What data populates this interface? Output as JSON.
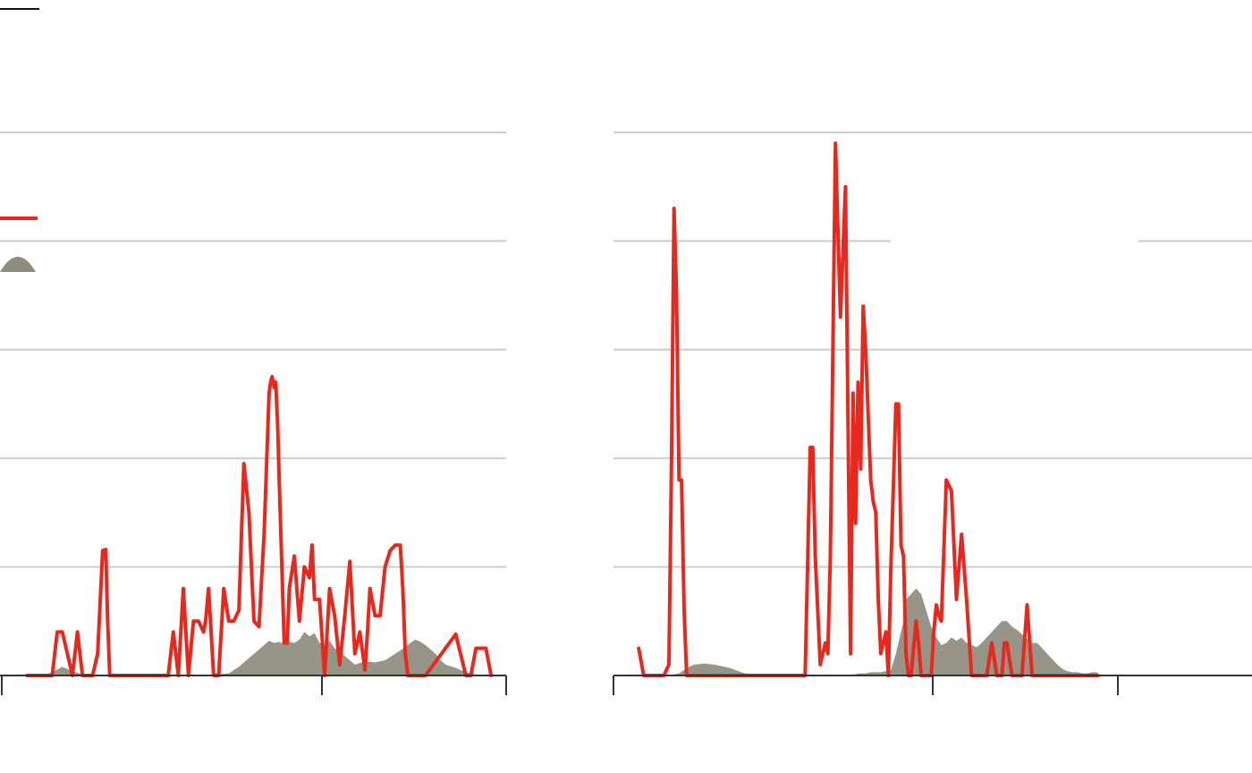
{
  "colors": {
    "line": "#e8281c",
    "area": "#8e8c7e",
    "grid": "#cccccc",
    "axis": "#333333"
  },
  "legend": {
    "line_icon": "line-swatch",
    "area_icon": "area-swatch"
  },
  "chart_data": [
    {
      "type": "line",
      "grid": true,
      "ylim": [
        0,
        5
      ],
      "yticks": [
        0,
        1,
        2,
        3,
        4,
        5
      ],
      "xlim": [
        0,
        100
      ],
      "x_ticks": [
        0,
        63,
        100
      ],
      "series": [
        {
          "kind": "area",
          "x": [
            0,
            8,
            10,
            12,
            14,
            16,
            20,
            30,
            40,
            45,
            47,
            50,
            53,
            54,
            55,
            56,
            57,
            58,
            59,
            60,
            61,
            62,
            63,
            64,
            65,
            66,
            67,
            68,
            70,
            72,
            74,
            76,
            78,
            80,
            81,
            82,
            83,
            84,
            85,
            86,
            87,
            88,
            90,
            92,
            94,
            96
          ],
          "values": [
            0,
            0,
            0.03,
            0.08,
            0.04,
            0.01,
            0,
            0,
            0,
            0.02,
            0.08,
            0.2,
            0.32,
            0.3,
            0.31,
            0.29,
            0.31,
            0.3,
            0.33,
            0.4,
            0.36,
            0.39,
            0.3,
            0.28,
            0.32,
            0.25,
            0.22,
            0.18,
            0.1,
            0.13,
            0.12,
            0.14,
            0.2,
            0.26,
            0.3,
            0.33,
            0.31,
            0.28,
            0.24,
            0.2,
            0.14,
            0.1,
            0.07,
            0.03,
            0.01,
            0
          ]
        },
        {
          "kind": "line",
          "x": [
            5,
            10,
            11,
            12,
            13,
            14,
            15,
            16,
            17,
            18,
            19,
            20,
            20.6,
            21,
            21.4,
            22,
            23,
            24,
            30,
            33,
            34,
            35,
            36,
            37,
            38,
            39,
            40,
            40.4,
            41,
            42,
            43,
            44,
            45,
            46,
            47,
            48,
            49,
            49.6,
            50,
            51,
            52,
            53,
            53.3,
            53.6,
            54,
            54.3,
            54.7,
            55,
            56,
            56.6,
            57,
            58,
            58.5,
            59,
            60,
            61,
            61.5,
            62,
            62.5,
            63,
            64,
            65,
            66,
            67,
            68,
            69,
            70,
            71,
            72,
            72.5,
            73,
            74,
            75,
            76,
            77,
            78,
            79,
            79.5,
            80,
            80.5,
            81,
            81.3,
            81.6,
            82,
            83,
            84,
            90,
            92,
            93,
            94,
            96,
            97
          ],
          "values": [
            0,
            0,
            0.4,
            0.4,
            0.2,
            0,
            0.4,
            0,
            0,
            0,
            0.2,
            1.15,
            1.16,
            0.5,
            0,
            0,
            0,
            0,
            0,
            0,
            0.4,
            0,
            0.8,
            0,
            0.5,
            0.5,
            0.4,
            0.5,
            0.8,
            0,
            0,
            0.8,
            0.5,
            0.5,
            0.6,
            1.95,
            1.5,
            0.9,
            0.5,
            0.45,
            1.3,
            2.6,
            2.7,
            2.75,
            2.65,
            2.7,
            2.3,
            1.8,
            0.3,
            0.3,
            0.8,
            1.1,
            0.8,
            0.5,
            1.0,
            0.9,
            1.2,
            0.7,
            0.7,
            0.7,
            0,
            0.8,
            0.55,
            0.1,
            0.55,
            1.05,
            0.2,
            0.4,
            0.05,
            0.4,
            0.8,
            0.55,
            0.55,
            1.0,
            1.15,
            1.2,
            1.2,
            0.8,
            0.2,
            0,
            0,
            0,
            0,
            0,
            0,
            0,
            0.38,
            0,
            0,
            0.25,
            0.25,
            0
          ]
        }
      ]
    },
    {
      "type": "line",
      "grid": true,
      "ylim": [
        0,
        5
      ],
      "yticks": [
        0,
        1,
        2,
        3,
        4,
        5
      ],
      "xlim": [
        0,
        100
      ],
      "x_ticks": [
        0,
        63,
        100
      ],
      "series": [
        {
          "kind": "area",
          "x": [
            0,
            11,
            13,
            14,
            15,
            16,
            18,
            20,
            23,
            26,
            30,
            35,
            40,
            41,
            45,
            48,
            48.5,
            49,
            49.5,
            50,
            51,
            52,
            53,
            54,
            55,
            56,
            57,
            57.5,
            58,
            59,
            60,
            61,
            62,
            63,
            64,
            65,
            66,
            67,
            68,
            69,
            70,
            71,
            72,
            73,
            74,
            75,
            76,
            77,
            78,
            79,
            80,
            81,
            82,
            83,
            84,
            85,
            86,
            87,
            88,
            89,
            90,
            91,
            92,
            93,
            94,
            95,
            96
          ],
          "values": [
            0,
            0,
            0.02,
            0.05,
            0.08,
            0.1,
            0.11,
            0.1,
            0.07,
            0.02,
            0.01,
            0,
            0,
            0,
            0,
            0.01,
            0.02,
            0.02,
            0.02,
            0.02,
            0.03,
            0.03,
            0.03,
            0.04,
            0.05,
            0.2,
            0.4,
            0.5,
            0.7,
            0.75,
            0.8,
            0.75,
            0.6,
            0.45,
            0.35,
            0.28,
            0.3,
            0.35,
            0.32,
            0.35,
            0.3,
            0.28,
            0.26,
            0.3,
            0.35,
            0.4,
            0.45,
            0.5,
            0.5,
            0.45,
            0.42,
            0.38,
            0.34,
            0.3,
            0.3,
            0.25,
            0.2,
            0.15,
            0.1,
            0.06,
            0.04,
            0.03,
            0.03,
            0.02,
            0.02,
            0.03,
            0.03
          ]
        },
        {
          "kind": "line",
          "x": [
            5,
            6,
            7,
            10,
            11,
            11.5,
            12,
            12.5,
            13,
            13.5,
            14,
            14.5,
            15,
            16,
            38,
            39,
            39.5,
            40,
            41,
            42,
            42.5,
            43,
            44,
            45,
            46,
            47,
            47.5,
            48,
            48.5,
            49,
            49.5,
            50,
            51,
            51.5,
            52,
            52.5,
            53,
            54,
            54.5,
            55,
            56,
            56.5,
            57,
            57.5,
            58,
            58.5,
            59,
            60,
            60.5,
            61,
            62,
            63,
            63.5,
            64,
            64.5,
            65,
            66,
            67,
            68,
            69,
            70,
            71,
            72,
            73,
            74,
            75,
            76,
            77,
            77.5,
            78,
            79,
            79.5,
            80,
            80.5,
            81,
            82,
            83,
            84,
            85,
            86,
            87,
            88,
            89,
            90,
            91,
            92,
            93,
            94,
            95,
            96
          ],
          "values": [
            0.25,
            0,
            0,
            0,
            0.1,
            2,
            4.3,
            3.5,
            1.8,
            1.8,
            0.6,
            0,
            0,
            0,
            0,
            2.1,
            2.1,
            1.1,
            0.1,
            0.3,
            0.2,
            1.1,
            4.9,
            3.3,
            4.5,
            0.2,
            2.6,
            1.4,
            2.7,
            1.9,
            3.4,
            3.0,
            1.8,
            1.6,
            1.5,
            0.7,
            0.2,
            0.4,
            0,
            1.0,
            2.5,
            2.5,
            1.2,
            1.1,
            0.2,
            0,
            0,
            0.5,
            0.3,
            0,
            0,
            0,
            0.4,
            0.65,
            0.55,
            0.5,
            1.8,
            1.7,
            0.7,
            1.3,
            0.7,
            0,
            0,
            0,
            0,
            0.3,
            0,
            0,
            0.3,
            0.3,
            0,
            0,
            0,
            0,
            0,
            0.65,
            0,
            0,
            0,
            0,
            0,
            0,
            0,
            0,
            0,
            0,
            0,
            0,
            0,
            0
          ]
        }
      ]
    }
  ]
}
